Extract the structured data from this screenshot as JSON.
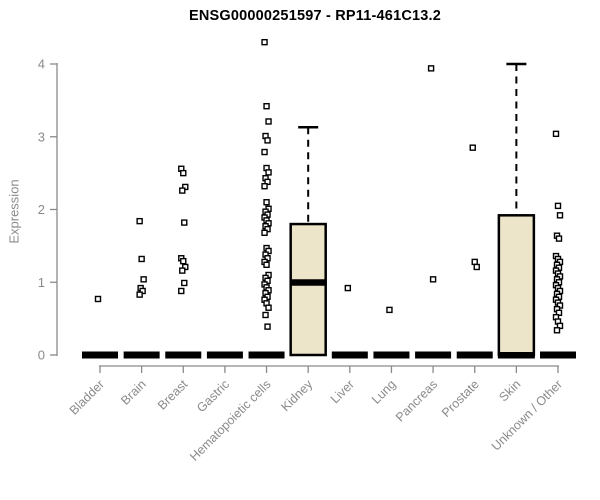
{
  "title": "ENSG00000251597 - RP11-461C13.2",
  "chart_data": {
    "type": "boxplot",
    "title": "ENSG00000251597 - RP11-461C13.2",
    "xlabel": "",
    "ylabel": "Expression",
    "ylim": [
      0,
      4.4
    ],
    "yticks": [
      0,
      1,
      2,
      3,
      4
    ],
    "grid": false,
    "legend": false,
    "categories": [
      "Bladder",
      "Brain",
      "Breast",
      "Gastric",
      "Hematopoietic cells",
      "Kidney",
      "Liver",
      "Lung",
      "Pancreas",
      "Prostate",
      "Skin",
      "Unknown / Other"
    ],
    "boxes": [
      {
        "category": "Bladder",
        "q1": 0,
        "median": 0,
        "q3": 0,
        "whisker_low": 0,
        "whisker_high": 0,
        "outliers": [
          0.77
        ]
      },
      {
        "category": "Brain",
        "q1": 0,
        "median": 0,
        "q3": 0,
        "whisker_low": 0,
        "whisker_high": 0,
        "outliers": [
          1.84,
          1.32,
          1.04,
          0.92,
          0.88,
          0.83
        ]
      },
      {
        "category": "Breast",
        "q1": 0,
        "median": 0,
        "q3": 0,
        "whisker_low": 0,
        "whisker_high": 0,
        "outliers": [
          2.56,
          2.5,
          2.31,
          2.26,
          1.82,
          1.33,
          1.29,
          1.21,
          1.16,
          0.99,
          0.88
        ]
      },
      {
        "category": "Gastric",
        "q1": 0,
        "median": 0,
        "q3": 0,
        "whisker_low": 0,
        "whisker_high": 0,
        "outliers": []
      },
      {
        "category": "Hematopoietic cells",
        "q1": 0,
        "median": 0,
        "q3": 0,
        "whisker_low": 0,
        "whisker_high": 0,
        "outliers": [
          4.3,
          3.42,
          3.21,
          3.01,
          2.95,
          2.79,
          2.57,
          2.51,
          2.43,
          2.38,
          2.32,
          2.1,
          2.01,
          1.97,
          1.93,
          1.89,
          1.85,
          1.81,
          1.77,
          1.73,
          1.68,
          1.47,
          1.43,
          1.38,
          1.33,
          1.28,
          1.24,
          1.1,
          1.06,
          1.02,
          0.97,
          0.93,
          0.89,
          0.85,
          0.8,
          0.76,
          0.71,
          0.65,
          0.55,
          0.39
        ]
      },
      {
        "category": "Kidney",
        "q1": 0,
        "median": 1.0,
        "q3": 1.8,
        "whisker_low": 0,
        "whisker_high": 3.13,
        "outliers": []
      },
      {
        "category": "Liver",
        "q1": 0,
        "median": 0,
        "q3": 0,
        "whisker_low": 0,
        "whisker_high": 0,
        "outliers": [
          0.92
        ]
      },
      {
        "category": "Lung",
        "q1": 0,
        "median": 0,
        "q3": 0,
        "whisker_low": 0,
        "whisker_high": 0,
        "outliers": [
          0.62
        ]
      },
      {
        "category": "Pancreas",
        "q1": 0,
        "median": 0,
        "q3": 0,
        "whisker_low": 0,
        "whisker_high": 0,
        "outliers": [
          3.94,
          1.04
        ]
      },
      {
        "category": "Prostate",
        "q1": 0,
        "median": 0,
        "q3": 0,
        "whisker_low": 0,
        "whisker_high": 0,
        "outliers": [
          2.85,
          1.28,
          1.21
        ]
      },
      {
        "category": "Skin",
        "q1": 0,
        "median": 0,
        "q3": 1.92,
        "whisker_low": 0,
        "whisker_high": 4.0,
        "outliers": []
      },
      {
        "category": "Unknown / Other",
        "q1": 0,
        "median": 0,
        "q3": 0,
        "whisker_low": 0,
        "whisker_high": 0,
        "outliers": [
          3.04,
          2.05,
          1.92,
          1.64,
          1.6,
          1.36,
          1.32,
          1.28,
          1.24,
          1.2,
          1.16,
          1.12,
          1.08,
          1.04,
          1.0,
          0.96,
          0.92,
          0.88,
          0.84,
          0.8,
          0.76,
          0.72,
          0.68,
          0.63,
          0.58,
          0.52,
          0.46,
          0.4,
          0.34
        ]
      }
    ],
    "colors": {
      "box_fill": "#ECE5C9",
      "box_border": "#000000",
      "median": "#000000",
      "whisker": "#000000",
      "outlier_fill": "#ffffff",
      "outlier_border": "#000000",
      "axis": "#8a8a8a",
      "tick_label": "#8a8a8a",
      "title_text": "#000000",
      "background": "#ffffff"
    }
  }
}
